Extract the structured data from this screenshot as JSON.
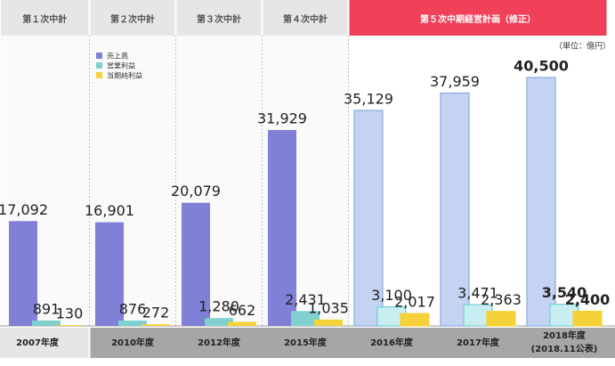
{
  "chart_data": {
    "type": "bar",
    "unit": "（単位：億円）",
    "periods": [
      {
        "label": "第１次中計",
        "span": 1
      },
      {
        "label": "第２次中計",
        "span": 1
      },
      {
        "label": "第３次中計",
        "span": 1
      },
      {
        "label": "第４次中計",
        "span": 1
      },
      {
        "label": "第５次中期経営計画（修正）",
        "span": 3,
        "highlight": true
      }
    ],
    "categories": [
      "2007年度",
      "2010年度",
      "2012年度",
      "2015年度",
      "2016年度",
      "2017年度",
      "2018年度"
    ],
    "category_note": "(2018.11公表)",
    "bold_last": true,
    "legend": "top-left",
    "series": [
      {
        "name": "売上高",
        "color": "#7f80d6",
        "light_color": "#c3d3f1",
        "border": "#8aa9e0",
        "values": [
          17092,
          16901,
          20079,
          31929,
          35129,
          37959,
          40500
        ],
        "value_labels": [
          "17,092",
          "16,901",
          "20,079",
          "31,929",
          "35,129",
          "37,959",
          "40,500"
        ]
      },
      {
        "name": "営業利益",
        "color": "#7fd0cf",
        "light_color": "#c9eef1",
        "border": "#6fcfd6",
        "values": [
          891,
          876,
          1280,
          2431,
          3100,
          3471,
          3540
        ],
        "value_labels": [
          "891",
          "876",
          "1,280",
          "2,431",
          "3,100",
          "3,471",
          "3,540"
        ]
      },
      {
        "name": "当期純利益",
        "color": "#f6d23a",
        "light_color": "#f6d23a",
        "border": "#f6d23a",
        "values": [
          130,
          272,
          662,
          1035,
          2017,
          2363,
          2400
        ],
        "value_labels": [
          "130",
          "272",
          "662",
          "1,035",
          "2,017",
          "2,363",
          "2,400"
        ]
      }
    ]
  }
}
